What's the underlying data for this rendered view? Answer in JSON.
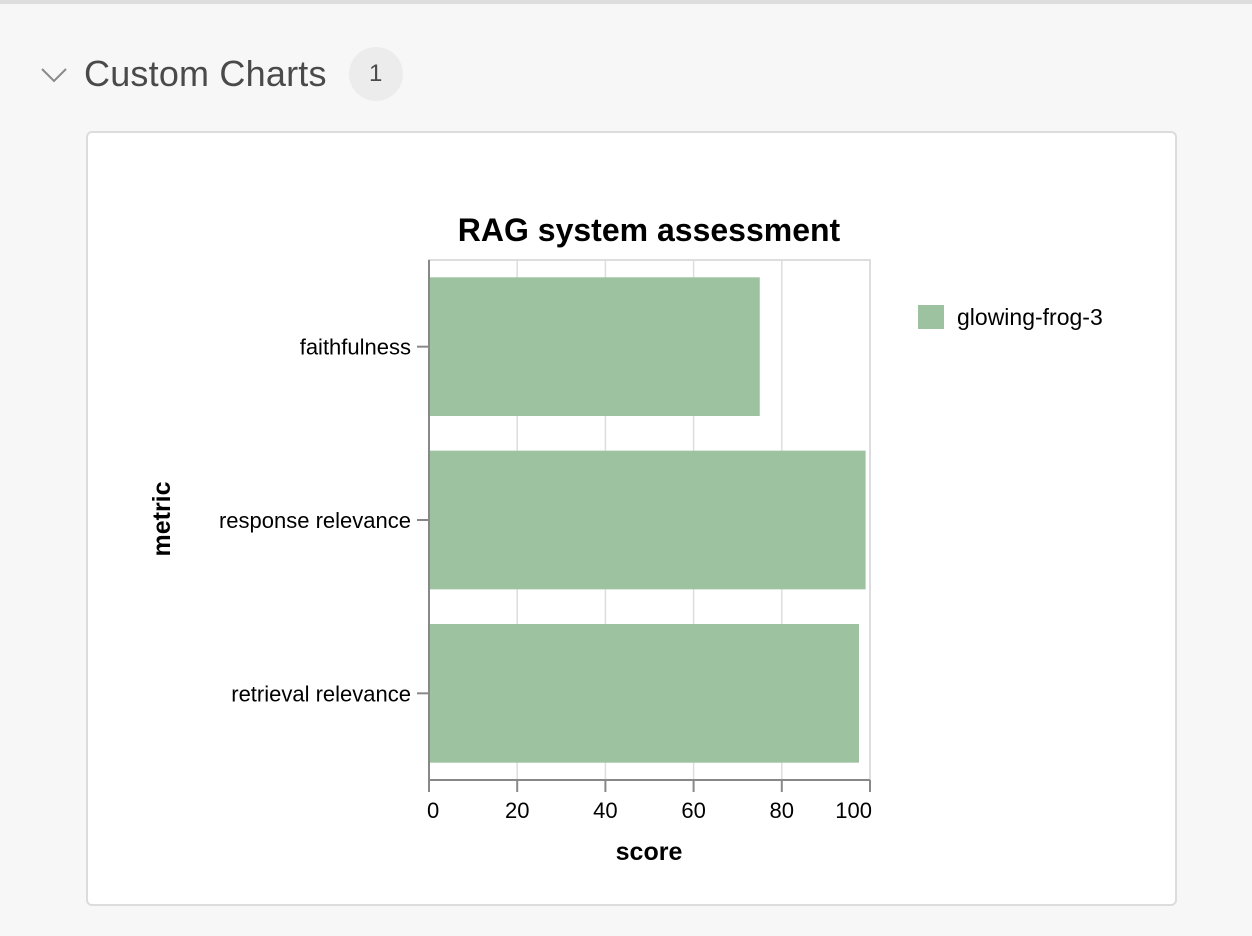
{
  "section": {
    "title": "Custom Charts",
    "count": "1",
    "chevron_icon": "chevron-down-icon"
  },
  "colors": {
    "bar": "#9cc29f",
    "grid": "#dddddd",
    "axis": "#888888",
    "text": "#000000"
  },
  "chart_data": {
    "type": "bar",
    "orientation": "horizontal",
    "title": "RAG system assessment",
    "xlabel": "score",
    "ylabel": "metric",
    "categories": [
      "faithfulness",
      "response relevance",
      "retrieval relevance"
    ],
    "series": [
      {
        "name": "glowing-frog-3",
        "values": [
          75,
          99,
          97.5
        ]
      }
    ],
    "xlim": [
      0,
      100
    ],
    "xticks": [
      0,
      20,
      40,
      60,
      80,
      100
    ],
    "grid": true,
    "legend": {
      "placement": "right",
      "entries": [
        "glowing-frog-3"
      ]
    }
  }
}
